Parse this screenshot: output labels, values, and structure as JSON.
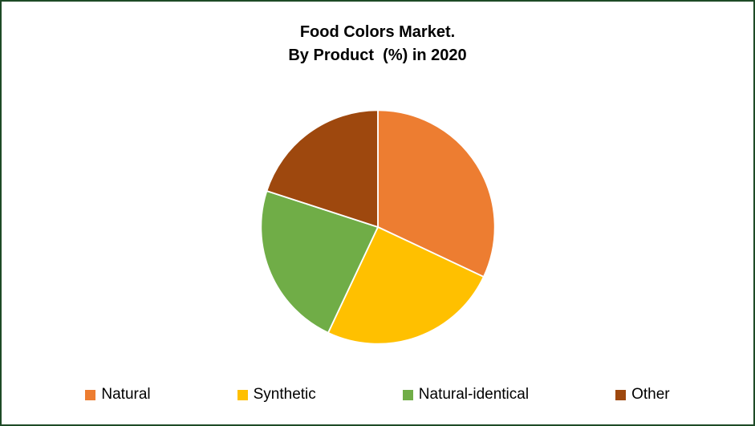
{
  "title": {
    "line1": "Food Colors Market.",
    "line2": "By Product  (%) in 2020"
  },
  "legend": {
    "items": [
      {
        "label": "Natural",
        "color": "#ED7D31"
      },
      {
        "label": "Synthetic",
        "color": "#FFC000"
      },
      {
        "label": "Natural-identical",
        "color": "#70AD47"
      },
      {
        "label": "Other",
        "color": "#9E480E"
      }
    ]
  },
  "frame": {
    "border_color": "#1e4a26",
    "background_color": "#ffffff"
  },
  "chart_data": {
    "type": "pie",
    "title": "Food Colors Market. By Product (%) in 2020",
    "categories": [
      "Natural",
      "Synthetic",
      "Natural-identical",
      "Other"
    ],
    "values": [
      32,
      25,
      23,
      20
    ],
    "units": "%",
    "colors": [
      "#ED7D31",
      "#FFC000",
      "#70AD47",
      "#9E480E"
    ],
    "slice_border_color": "#ffffff",
    "start_angle_deg": 0,
    "direction": "clockwise",
    "legend_position": "bottom",
    "data_labels": false
  }
}
